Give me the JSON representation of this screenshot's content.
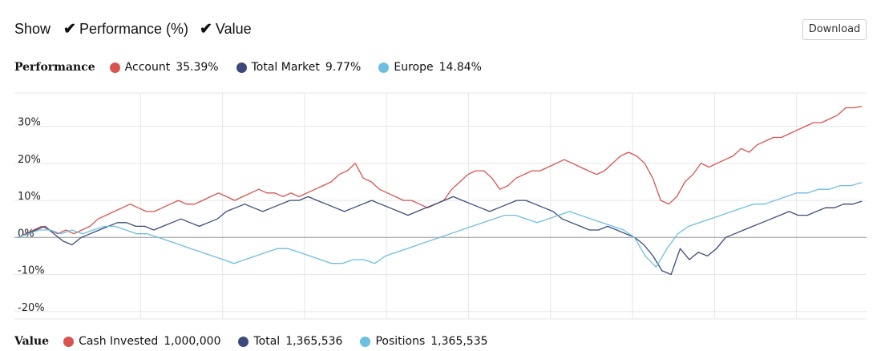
{
  "toolbar": {
    "show_label": "Show",
    "toggles": [
      {
        "label": "Performance (%)",
        "checked": true
      },
      {
        "label": "Value",
        "checked": true
      }
    ],
    "download_label": "Download"
  },
  "performance_legend": {
    "title": "Performance",
    "items": [
      {
        "name": "Account",
        "value": "35.39%",
        "color": "#d9534f"
      },
      {
        "name": "Total Market",
        "value": "9.77%",
        "color": "#3b4a7a"
      },
      {
        "name": "Europe",
        "value": "14.84%",
        "color": "#6cbfe0"
      }
    ]
  },
  "value_legend": {
    "title": "Value",
    "items": [
      {
        "name": "Cash Invested",
        "value": "1,000,000",
        "color": "#d9534f"
      },
      {
        "name": "Total",
        "value": "1,365,536",
        "color": "#3b4a7a"
      },
      {
        "name": "Positions",
        "value": "1,365,535",
        "color": "#6cbfe0"
      }
    ]
  },
  "chart_data": {
    "type": "line",
    "ylim": [
      -22,
      39
    ],
    "yticks": [
      30,
      20,
      10,
      0,
      -10,
      -20
    ],
    "ytick_labels": [
      "30%",
      "20%",
      "10%",
      "0%",
      "-10%",
      "-20%"
    ],
    "grid": true,
    "series": [
      {
        "name": "Account",
        "color": "#d9534f",
        "values": [
          0,
          1,
          2,
          3,
          2,
          1,
          2,
          1,
          2,
          3,
          5,
          6,
          7,
          8,
          9,
          8,
          7,
          7,
          8,
          9,
          10,
          9,
          9,
          10,
          11,
          12,
          11,
          10,
          11,
          12,
          13,
          12,
          12,
          11,
          12,
          11,
          12,
          13,
          14,
          15,
          17,
          18,
          20,
          16,
          15,
          13,
          12,
          11,
          10,
          10,
          9,
          8,
          9,
          10,
          13,
          15,
          17,
          18,
          18,
          16,
          13,
          14,
          16,
          17,
          18,
          18,
          19,
          20,
          21,
          20,
          19,
          18,
          17,
          18,
          20,
          22,
          23,
          22,
          20,
          16,
          10,
          9,
          11,
          15,
          17,
          20,
          19,
          20,
          21,
          22,
          24,
          23,
          25,
          26,
          27,
          27,
          28,
          29,
          30,
          31,
          31,
          32,
          33,
          35,
          35,
          35.39
        ]
      },
      {
        "name": "Total Market",
        "color": "#3b4a7a",
        "values": [
          0,
          1,
          2,
          3,
          1,
          -1,
          -2,
          0,
          1,
          2,
          3,
          4,
          4,
          3,
          3,
          2,
          3,
          4,
          5,
          4,
          3,
          4,
          5,
          7,
          8,
          9,
          8,
          7,
          8,
          9,
          10,
          10,
          11,
          10,
          9,
          8,
          7,
          8,
          9,
          10,
          9,
          8,
          7,
          6,
          7,
          8,
          9,
          10,
          11,
          10,
          9,
          8,
          7,
          8,
          9,
          10,
          10,
          9,
          8,
          7,
          5,
          4,
          3,
          2,
          2,
          3,
          2,
          1,
          0,
          -2,
          -5,
          -9,
          -10,
          -3,
          -6,
          -4,
          -5,
          -3,
          0,
          1,
          2,
          3,
          4,
          5,
          6,
          7,
          6,
          6,
          7,
          8,
          8,
          9,
          9,
          9.77
        ]
      },
      {
        "name": "Europe",
        "color": "#6cbfe0",
        "values": [
          0,
          1,
          2,
          2,
          1,
          2,
          1,
          2,
          3,
          3,
          2,
          1,
          1,
          0,
          -1,
          -2,
          -3,
          -4,
          -5,
          -6,
          -7,
          -6,
          -5,
          -4,
          -3,
          -3,
          -4,
          -5,
          -6,
          -7,
          -7,
          -6,
          -6,
          -7,
          -5,
          -4,
          -3,
          -2,
          -1,
          0,
          1,
          2,
          3,
          4,
          5,
          6,
          6,
          5,
          4,
          5,
          6,
          7,
          6,
          5,
          4,
          3,
          2,
          0,
          -5,
          -8,
          -3,
          1,
          3,
          4,
          5,
          6,
          7,
          8,
          9,
          9,
          10,
          11,
          12,
          12,
          13,
          13,
          14,
          14,
          14.84
        ]
      }
    ]
  }
}
